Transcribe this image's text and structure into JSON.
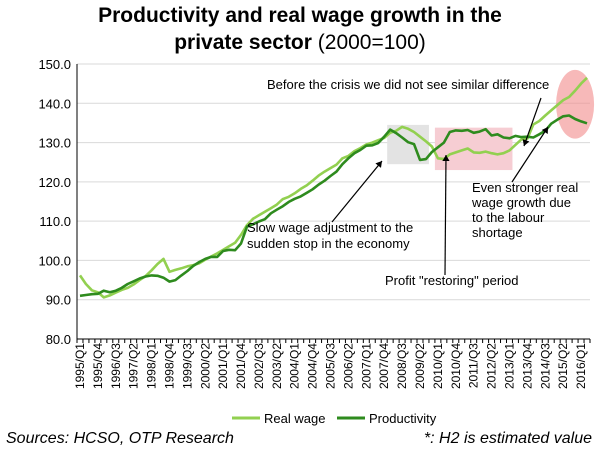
{
  "title": {
    "line1": "Productivity and real wage growth in the",
    "line2_bold": "private sector",
    "line2_suffix": "(2000=100)"
  },
  "footer": {
    "source": "Sources: HCSO, OTP Research",
    "note": "*: H2 is estimated value"
  },
  "annotations": {
    "crisis": "Before the crisis we did not see similar difference",
    "slow_wage": [
      "Slow wage adjustment to the",
      "sudden stop in the economy"
    ],
    "profit": "Profit \"restoring\" period",
    "stronger": [
      "Even stronger real",
      "wage growth due",
      "to the labour",
      "shortage"
    ]
  },
  "colors": {
    "real_wage": "#92d050",
    "productivity": "#2e8b1e",
    "grid": "#d9d9d9",
    "box_grey": "#e3e3e3",
    "box_pink": "#f6cdd3",
    "ellipse": "#f28b8b"
  },
  "chart_data": {
    "type": "line",
    "ylim": [
      80,
      150
    ],
    "yticks": [
      "80.0",
      "90.0",
      "100.0",
      "110.0",
      "120.0",
      "130.0",
      "140.0",
      "150.0"
    ],
    "x": [
      "1995/Q1",
      "1995/Q2",
      "1995/Q3",
      "1995/Q4",
      "1996/Q1",
      "1996/Q2",
      "1996/Q3",
      "1996/Q4",
      "1997/Q1",
      "1997/Q2",
      "1997/Q3",
      "1997/Q4",
      "1998/Q1",
      "1998/Q2",
      "1998/Q3",
      "1998/Q4",
      "1999/Q1",
      "1999/Q2",
      "1999/Q3",
      "1999/Q4",
      "2000/Q1",
      "2000/Q2",
      "2000/Q3",
      "2000/Q4",
      "2001/Q1",
      "2001/Q2",
      "2001/Q3",
      "2001/Q4",
      "2002/Q1",
      "2002/Q2",
      "2002/Q3",
      "2002/Q4",
      "2003/Q1",
      "2003/Q2",
      "2003/Q3",
      "2003/Q4",
      "2004/Q1",
      "2004/Q2",
      "2004/Q3",
      "2004/Q4",
      "2005/Q1",
      "2005/Q2",
      "2005/Q3",
      "2005/Q4",
      "2006/Q1",
      "2006/Q2",
      "2006/Q3",
      "2006/Q4",
      "2007/Q1",
      "2007/Q2",
      "2007/Q3",
      "2007/Q4",
      "2008/Q1",
      "2008/Q2",
      "2008/Q3",
      "2008/Q4",
      "2009/Q1",
      "2009/Q2",
      "2009/Q3",
      "2009/Q4",
      "2010/Q1",
      "2010/Q2",
      "2010/Q3",
      "2010/Q4",
      "2011/Q1",
      "2011/Q2",
      "2011/Q3",
      "2011/Q4",
      "2012/Q1",
      "2012/Q2",
      "2012/Q3",
      "2012/Q4",
      "2013/Q1",
      "2013/Q2",
      "2013/Q3",
      "2013/Q4",
      "2014/Q1",
      "2014/Q2",
      "2014/Q3",
      "2014/Q4",
      "2015/Q1",
      "2015/Q2",
      "2015/Q3",
      "2015/Q4",
      "2016/Q1",
      "2016/Q2"
    ],
    "series": [
      {
        "name": "Real wage",
        "values": [
          96.2,
          94.0,
          92.4,
          91.9,
          90.6,
          91.1,
          91.8,
          92.5,
          93.0,
          93.9,
          95.0,
          96.0,
          97.5,
          99.1,
          100.4,
          97.1,
          97.6,
          98.0,
          98.5,
          98.8,
          99.3,
          100.2,
          101.0,
          101.8,
          102.7,
          103.6,
          104.5,
          106.5,
          109.0,
          110.6,
          111.5,
          112.4,
          113.3,
          114.2,
          115.6,
          116.2,
          117.1,
          118.2,
          119.1,
          120.3,
          121.6,
          122.6,
          123.5,
          124.4,
          126.0,
          126.6,
          127.8,
          128.6,
          129.5,
          130.0,
          130.6,
          131.2,
          132.5,
          133.0,
          134.0,
          133.5,
          132.7,
          131.5,
          130.3,
          129.0,
          126.0,
          125.8,
          127.0,
          127.5,
          128.0,
          128.5,
          127.5,
          127.4,
          127.7,
          127.3,
          127.0,
          127.3,
          128.0,
          129.4,
          130.8,
          131.0,
          134.6,
          135.5,
          136.9,
          138.2,
          139.5,
          140.8,
          141.6,
          143.2,
          145.0,
          146.5
        ]
      },
      {
        "name": "Productivity",
        "values": [
          91.0,
          91.2,
          91.4,
          91.5,
          92.3,
          91.9,
          92.3,
          93.0,
          94.0,
          94.7,
          95.4,
          95.9,
          96.2,
          96.1,
          95.6,
          94.6,
          95.0,
          96.2,
          97.3,
          98.6,
          99.6,
          100.4,
          100.9,
          100.9,
          102.4,
          102.7,
          102.6,
          104.3,
          108.6,
          109.2,
          109.9,
          110.5,
          112.0,
          112.9,
          113.8,
          114.9,
          115.7,
          116.3,
          117.2,
          118.1,
          119.3,
          120.3,
          121.5,
          122.6,
          124.5,
          126.0,
          127.3,
          128.1,
          129.2,
          129.3,
          129.9,
          131.5,
          133.3,
          132.4,
          131.3,
          130.1,
          129.6,
          125.6,
          125.8,
          127.6,
          128.8,
          130.0,
          132.7,
          133.1,
          133.0,
          133.2,
          132.5,
          132.8,
          133.4,
          131.8,
          132.1,
          131.3,
          131.1,
          131.7,
          131.4,
          131.5,
          131.3,
          132.1,
          133.0,
          134.8,
          135.8,
          136.7,
          136.9,
          136.0,
          135.4,
          134.9
        ]
      }
    ],
    "shading": [
      {
        "from": "2008/Q1",
        "to": "2009/Q3",
        "ylim": [
          124.5,
          134.5
        ]
      },
      {
        "from": "2010/Q1",
        "to": "2013/Q1",
        "ylim": [
          123.0,
          133.8
        ]
      }
    ],
    "highlight_ellipse": {
      "center": "2015/Q4",
      "ylim": [
        131,
        148.5
      ]
    }
  },
  "legend": {
    "placement": "bottom-center",
    "items": [
      "Real wage",
      "Productivity"
    ]
  }
}
